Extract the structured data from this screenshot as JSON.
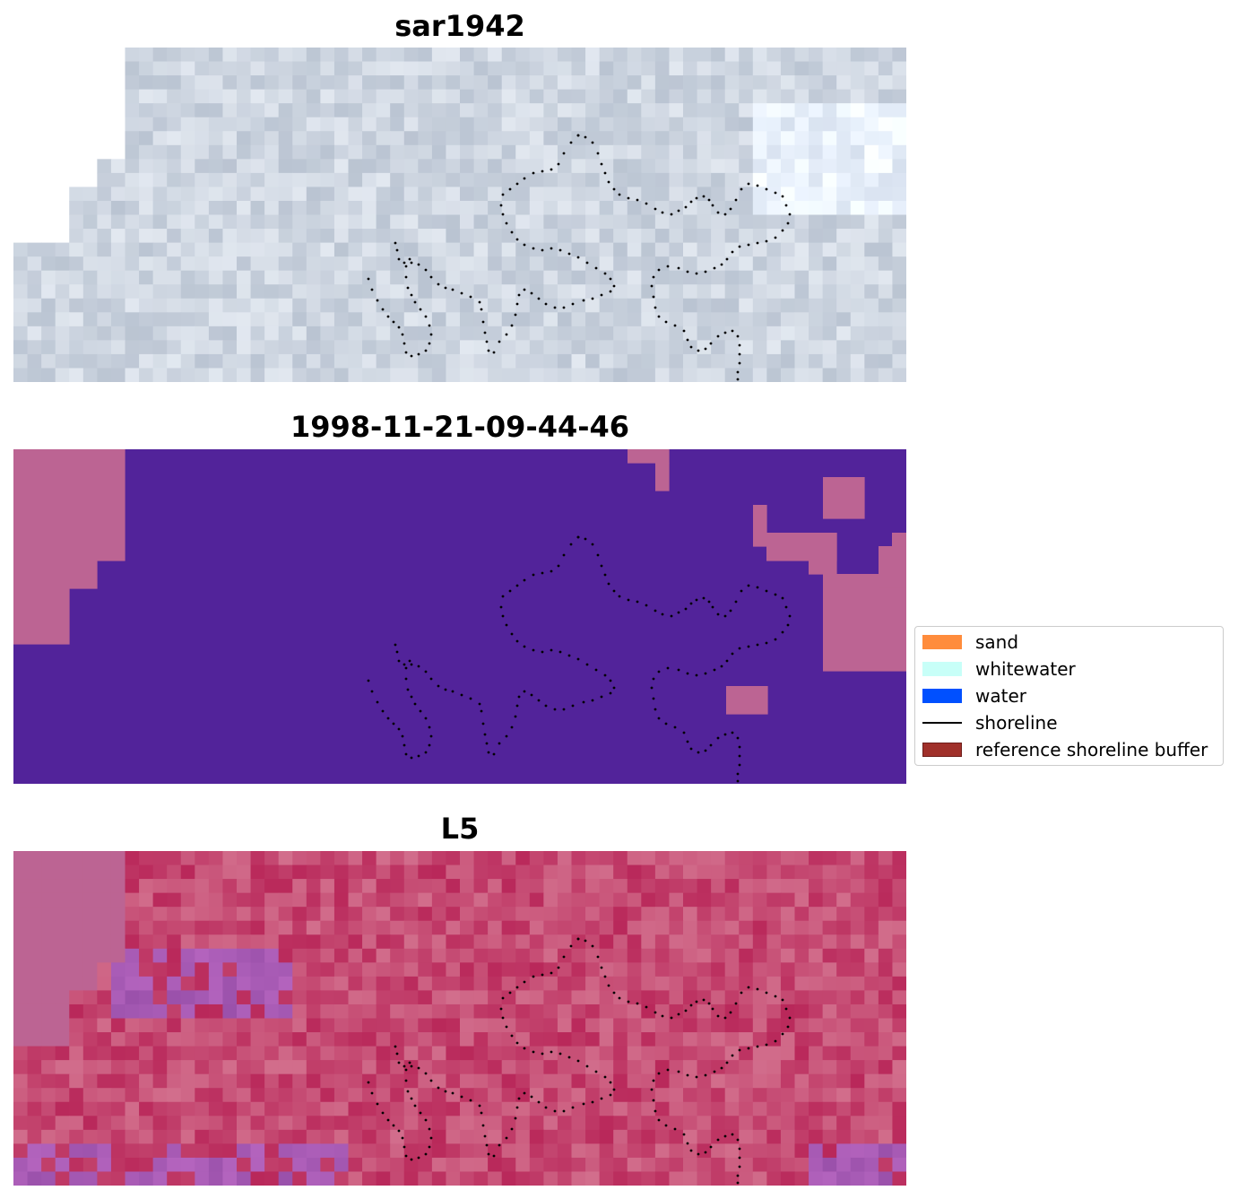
{
  "panels": [
    {
      "title": "sar1942"
    },
    {
      "title": "1998-11-21-09-44-46"
    },
    {
      "title": "L5"
    }
  ],
  "legend": {
    "items": [
      {
        "label": "sand",
        "kind": "patch",
        "color": "#ff8c3c"
      },
      {
        "label": "whitewater",
        "kind": "patch",
        "color": "#c8fff8"
      },
      {
        "label": "water",
        "kind": "patch",
        "color": "#0050ff"
      },
      {
        "label": "shoreline",
        "kind": "line",
        "color": "#000000"
      },
      {
        "label": "reference shoreline buffer",
        "kind": "patch",
        "color": "#a0302a",
        "edge": "#6e1e1a"
      }
    ]
  },
  "colors": {
    "classified_water": "#52239a",
    "classified_nodata": "#bc6493"
  }
}
